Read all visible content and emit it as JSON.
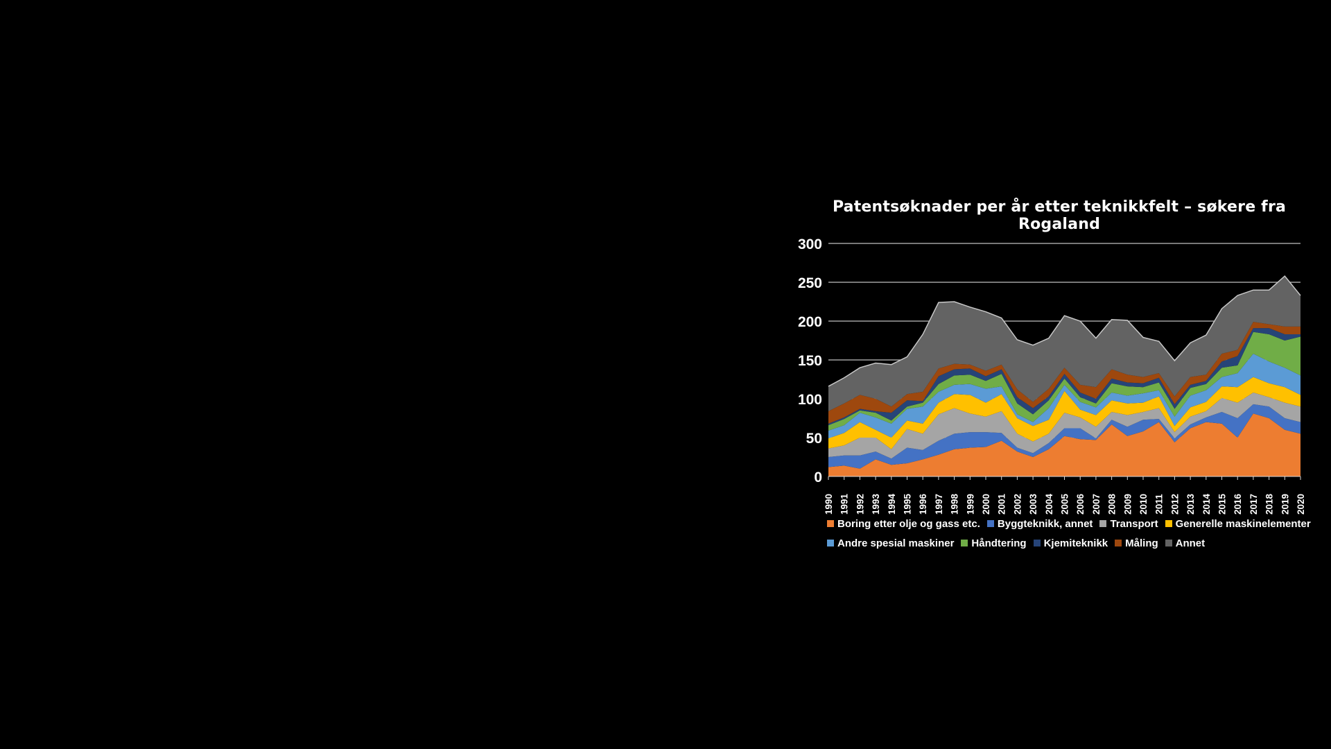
{
  "chart_data": {
    "type": "area",
    "stacked": true,
    "title": "Patentsøknader per år etter teknikkfelt – søkere fra Rogaland",
    "xlabel": "",
    "ylabel": "",
    "ylim": [
      0,
      300
    ],
    "yticks": [
      "0",
      "50",
      "100",
      "150",
      "200",
      "250",
      "300"
    ],
    "grid": true,
    "legend_position": "bottom",
    "x": [
      "1990",
      "1991",
      "1992",
      "1993",
      "1994",
      "1995",
      "1996",
      "1997",
      "1998",
      "1999",
      "2000",
      "2001",
      "2002",
      "2003",
      "2004",
      "2005",
      "2006",
      "2007",
      "2008",
      "2009",
      "2010",
      "2011",
      "2012",
      "2013",
      "2014",
      "2015",
      "2016",
      "2017",
      "2018",
      "2019",
      "2020"
    ],
    "series": [
      {
        "name": "Boring etter olje og gass etc.",
        "color": "#ed7d31",
        "values": [
          12,
          14,
          10,
          22,
          15,
          17,
          22,
          28,
          35,
          37,
          38,
          46,
          32,
          25,
          35,
          52,
          48,
          47,
          67,
          52,
          58,
          70,
          44,
          62,
          70,
          68,
          50,
          81,
          75,
          60,
          55
        ]
      },
      {
        "name": "Byggteknikk, annet",
        "color": "#4472c4",
        "values": [
          13,
          13,
          17,
          10,
          8,
          20,
          12,
          18,
          20,
          20,
          19,
          10,
          5,
          5,
          8,
          10,
          14,
          2,
          6,
          12,
          15,
          4,
          5,
          5,
          6,
          15,
          25,
          12,
          15,
          15,
          15
        ]
      },
      {
        "name": "Transport",
        "color": "#a5a5a5",
        "values": [
          11,
          13,
          23,
          18,
          12,
          24,
          21,
          34,
          33,
          24,
          20,
          28,
          18,
          15,
          12,
          20,
          14,
          15,
          10,
          15,
          10,
          14,
          8,
          10,
          8,
          18,
          20,
          15,
          12,
          20,
          20
        ]
      },
      {
        "name": "Generelle maskinelementer",
        "color": "#ffc000",
        "values": [
          13,
          16,
          20,
          10,
          15,
          11,
          13,
          15,
          18,
          24,
          18,
          22,
          20,
          20,
          18,
          28,
          10,
          15,
          15,
          15,
          12,
          15,
          8,
          12,
          12,
          15,
          20,
          20,
          18,
          20,
          15
        ]
      },
      {
        "name": "Andre spesial maskiner",
        "color": "#5b9bd5",
        "values": [
          10,
          10,
          12,
          16,
          18,
          15,
          22,
          14,
          12,
          14,
          18,
          10,
          5,
          5,
          15,
          8,
          10,
          10,
          10,
          10,
          12,
          8,
          12,
          15,
          15,
          12,
          18,
          30,
          28,
          25,
          25
        ]
      },
      {
        "name": "Håndtering",
        "color": "#70ad47",
        "values": [
          7,
          8,
          3,
          6,
          4,
          3,
          5,
          10,
          12,
          12,
          10,
          16,
          14,
          10,
          10,
          8,
          6,
          5,
          12,
          12,
          8,
          10,
          10,
          10,
          8,
          12,
          10,
          28,
          35,
          35,
          50
        ]
      },
      {
        "name": "Kjemiteknikk",
        "color": "#264478",
        "values": [
          2,
          2,
          2,
          2,
          10,
          8,
          2,
          10,
          8,
          8,
          6,
          6,
          8,
          8,
          5,
          6,
          6,
          6,
          6,
          5,
          5,
          6,
          6,
          4,
          4,
          8,
          12,
          5,
          8,
          8,
          3
        ]
      },
      {
        "name": "Måling",
        "color": "#9e480e",
        "values": [
          16,
          18,
          18,
          16,
          8,
          8,
          12,
          10,
          7,
          5,
          7,
          6,
          10,
          8,
          10,
          8,
          10,
          15,
          12,
          10,
          8,
          6,
          10,
          10,
          8,
          10,
          8,
          8,
          5,
          10,
          10
        ]
      },
      {
        "name": "Annet",
        "color": "#636363",
        "values": [
          32,
          33,
          35,
          46,
          54,
          48,
          74,
          85,
          80,
          74,
          76,
          60,
          64,
          73,
          65,
          67,
          82,
          63,
          64,
          70,
          51,
          41,
          46,
          44,
          51,
          58,
          70,
          41,
          44,
          65,
          40
        ]
      }
    ]
  }
}
